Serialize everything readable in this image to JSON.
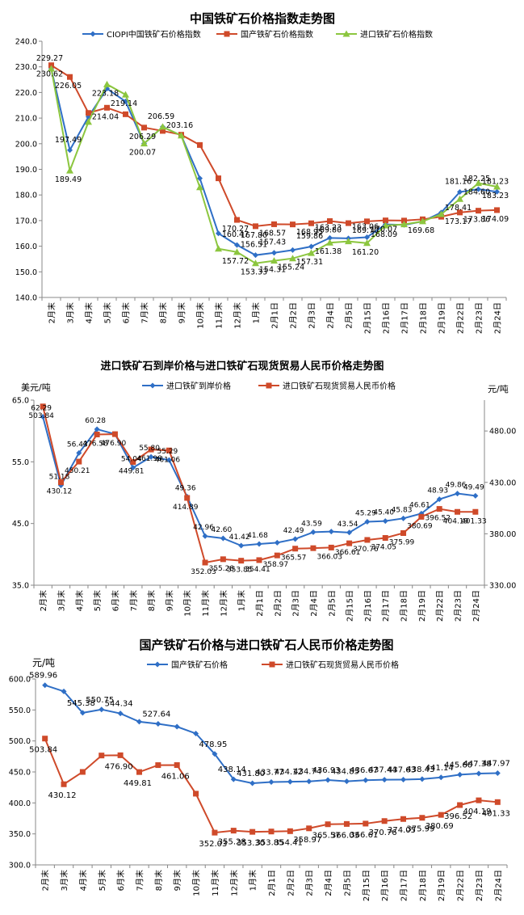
{
  "chart_data": [
    {
      "type": "line",
      "title": "中国铁矿石价格指数走势图",
      "categories": [
        "2月末",
        "3月末",
        "4月末",
        "5月末",
        "6月末",
        "7月末",
        "8月末",
        "9月末",
        "10月末",
        "11月末",
        "12月末",
        "1月末",
        "2月1日",
        "2月2日",
        "2月3日",
        "2月4日",
        "2月5日",
        "2月15日",
        "2月16日",
        "2月17日",
        "2月18日",
        "2月19日",
        "2月22日",
        "2月23日",
        "2月24日"
      ],
      "ylim": [
        140,
        240
      ],
      "y_ticks": [
        "140.0",
        "150.0",
        "160.0",
        "170.0",
        "180.0",
        "190.0",
        "200.0",
        "210.0",
        "220.0",
        "230.0",
        "240.0"
      ],
      "grid": false,
      "legend": "top",
      "series": [
        {
          "name": "CIOPI中国铁矿石价格指数",
          "color": "#2f6fc6",
          "marker": "diamond",
          "values": [
            229.27,
            197.49,
            210.5,
            221.5,
            216.5,
            200.07,
            206.59,
            203.16,
            186.5,
            165.0,
            160.47,
            156.51,
            157.43,
            158.5,
            159.86,
            163.23,
            163.06,
            163.5,
            168.5,
            168.3,
            169.68,
            173.17,
            181.16,
            182.25,
            181.23
          ]
        },
        {
          "name": "国产铁矿石价格指数",
          "color": "#cf4a2a",
          "marker": "square",
          "values": [
            230.62,
            226.05,
            212.0,
            214.04,
            211.5,
            206.29,
            205.0,
            203.5,
            199.5,
            186.5,
            170.27,
            167.8,
            168.57,
            168.5,
            168.95,
            169.8,
            169.0,
            169.7,
            170.07,
            170.0,
            170.5,
            171.5,
            173.17,
            173.86,
            174.09
          ]
        },
        {
          "name": "进口铁矿石价格指数",
          "color": "#8cc63f",
          "marker": "triangle",
          "values": [
            229.27,
            189.49,
            208.5,
            223.18,
            219.14,
            200.07,
            206.59,
            203.16,
            183.0,
            159.0,
            157.72,
            153.33,
            154.31,
            155.24,
            157.31,
            161.38,
            161.9,
            161.2,
            168.09,
            168.5,
            169.68,
            172.5,
            178.41,
            184.6,
            183.23
          ]
        }
      ],
      "labels": [
        {
          "text": "230.62",
          "series": 1,
          "i": 0
        },
        {
          "text": "229.27",
          "series": 0,
          "i": 0
        },
        {
          "text": "226.05",
          "series": 1,
          "i": 1
        },
        {
          "text": "197.49",
          "series": 0,
          "i": 1
        },
        {
          "text": "189.49",
          "series": 2,
          "i": 1
        },
        {
          "text": "214.04",
          "series": 1,
          "i": 3
        },
        {
          "text": "223.18",
          "series": 2,
          "i": 3
        },
        {
          "text": "219.14",
          "series": 2,
          "i": 4
        },
        {
          "text": "206.29",
          "series": 1,
          "i": 5
        },
        {
          "text": "200.07",
          "series": 2,
          "i": 5
        },
        {
          "text": "206.59",
          "series": 0,
          "i": 6
        },
        {
          "text": "203.16",
          "series": 0,
          "i": 7
        },
        {
          "text": "170.27",
          "series": 1,
          "i": 10
        },
        {
          "text": "160.47",
          "series": 0,
          "i": 10
        },
        {
          "text": "157.72",
          "series": 2,
          "i": 10
        },
        {
          "text": "167.80",
          "series": 1,
          "i": 11
        },
        {
          "text": "156.51",
          "series": 0,
          "i": 11
        },
        {
          "text": "153.33",
          "series": 2,
          "i": 11
        },
        {
          "text": "168.57",
          "series": 1,
          "i": 12
        },
        {
          "text": "157.43",
          "series": 0,
          "i": 12
        },
        {
          "text": "154.31",
          "series": 2,
          "i": 12
        },
        {
          "text": "155.24",
          "series": 2,
          "i": 13
        },
        {
          "text": "168.95",
          "series": 1,
          "i": 14
        },
        {
          "text": "159.86",
          "series": 0,
          "i": 14
        },
        {
          "text": "157.31",
          "series": 2,
          "i": 14
        },
        {
          "text": "169.80",
          "series": 1,
          "i": 15
        },
        {
          "text": "163.23",
          "series": 0,
          "i": 15
        },
        {
          "text": "161.38",
          "series": 2,
          "i": 15
        },
        {
          "text": "169.70",
          "series": 1,
          "i": 17
        },
        {
          "text": "163.06",
          "series": 0,
          "i": 17
        },
        {
          "text": "161.20",
          "series": 2,
          "i": 17
        },
        {
          "text": "170.07",
          "series": 1,
          "i": 18
        },
        {
          "text": "168.09",
          "series": 2,
          "i": 18
        },
        {
          "text": "169.68",
          "series": 2,
          "i": 20
        },
        {
          "text": "173.17",
          "series": 1,
          "i": 22
        },
        {
          "text": "181.16",
          "series": 0,
          "i": 22
        },
        {
          "text": "178.41",
          "series": 2,
          "i": 22
        },
        {
          "text": "173.86",
          "series": 1,
          "i": 23
        },
        {
          "text": "184.60",
          "series": 2,
          "i": 23
        },
        {
          "text": "182.25",
          "series": 0,
          "i": 23
        },
        {
          "text": "174.09",
          "series": 1,
          "i": 24
        },
        {
          "text": "183.23",
          "series": 2,
          "i": 24
        },
        {
          "text": "181.23",
          "series": 0,
          "i": 24
        }
      ]
    },
    {
      "type": "line",
      "title": "进口铁矿石到岸价格与进口铁矿石现货贸易人民币价格走势图",
      "categories": [
        "2月末",
        "3月末",
        "4月末",
        "5月末",
        "6月末",
        "7月末",
        "8月末",
        "9月末",
        "10月末",
        "11月末",
        "12月末",
        "1月末",
        "2月1日",
        "2月2日",
        "2月3日",
        "2月4日",
        "2月5日",
        "2月15日",
        "2月16日",
        "2月17日",
        "2月18日",
        "2月19日",
        "2月22日",
        "2月23日",
        "2月24日"
      ],
      "ylabel": "美元/吨",
      "ylabel_right": "元/吨",
      "ylim": [
        35,
        65
      ],
      "ylim_right": [
        330,
        510
      ],
      "y_ticks": [
        "35.0",
        "45.0",
        "55.0",
        "65.0"
      ],
      "y_ticks_right": [
        "330.00",
        "380.00",
        "430.00",
        "480.00"
      ],
      "legend": "top",
      "series": [
        {
          "name": "进口铁矿到岸价格",
          "color": "#2f6fc6",
          "marker": "diamond",
          "axis": "left",
          "values": [
            62.29,
            51.18,
            56.43,
            60.28,
            59.5,
            54.04,
            55.8,
            55.29,
            49.36,
            42.96,
            42.6,
            41.42,
            41.68,
            41.9,
            42.49,
            43.59,
            43.7,
            43.54,
            45.29,
            45.4,
            45.83,
            46.61,
            48.93,
            49.86,
            49.49
          ]
        },
        {
          "name": "进口铁矿石现货贸易人民币价格",
          "color": "#cf4a2a",
          "marker": "square",
          "axis": "right",
          "values": [
            503.84,
            430.12,
            450.21,
            476.58,
            476.9,
            449.81,
            461.98,
            461.06,
            414.89,
            352.03,
            355.28,
            353.85,
            354.41,
            358.97,
            365.57,
            366.03,
            366.61,
            370.76,
            374.05,
            375.99,
            380.69,
            396.52,
            404.19,
            401.33,
            401.33
          ]
        }
      ],
      "labels": [
        {
          "text": "503.84",
          "series": 1,
          "i": 0
        },
        {
          "text": "62.29",
          "series": 0,
          "i": 0
        },
        {
          "text": "430.12",
          "series": 1,
          "i": 1
        },
        {
          "text": "51.18",
          "series": 0,
          "i": 1
        },
        {
          "text": "56.43",
          "series": 0,
          "i": 2
        },
        {
          "text": "450.21",
          "series": 1,
          "i": 2
        },
        {
          "text": "60.28",
          "series": 0,
          "i": 3
        },
        {
          "text": "476.58",
          "series": 1,
          "i": 3
        },
        {
          "text": "476.90",
          "series": 1,
          "i": 4
        },
        {
          "text": "449.81",
          "series": 1,
          "i": 5
        },
        {
          "text": "54.04",
          "series": 0,
          "i": 5
        },
        {
          "text": "461.98",
          "series": 1,
          "i": 6
        },
        {
          "text": "55.80",
          "series": 0,
          "i": 6
        },
        {
          "text": "461.06",
          "series": 1,
          "i": 7
        },
        {
          "text": "55.29",
          "series": 0,
          "i": 7
        },
        {
          "text": "414.89",
          "series": 1,
          "i": 8
        },
        {
          "text": "49.36",
          "series": 0,
          "i": 8
        },
        {
          "text": "42.96",
          "series": 0,
          "i": 9
        },
        {
          "text": "352.03",
          "series": 1,
          "i": 9
        },
        {
          "text": "42.60",
          "series": 0,
          "i": 10
        },
        {
          "text": "355.28",
          "series": 1,
          "i": 10
        },
        {
          "text": "41.42",
          "series": 0,
          "i": 11
        },
        {
          "text": "353.85",
          "series": 1,
          "i": 11
        },
        {
          "text": "41.68",
          "series": 0,
          "i": 12
        },
        {
          "text": "354.41",
          "series": 1,
          "i": 12
        },
        {
          "text": "358.97",
          "series": 1,
          "i": 13
        },
        {
          "text": "42.49",
          "series": 0,
          "i": 14
        },
        {
          "text": "365.57",
          "series": 1,
          "i": 14
        },
        {
          "text": "43.59",
          "series": 0,
          "i": 15
        },
        {
          "text": "366.03",
          "series": 1,
          "i": 16
        },
        {
          "text": "43.54",
          "series": 0,
          "i": 17
        },
        {
          "text": "366.61",
          "series": 1,
          "i": 17
        },
        {
          "text": "45.29",
          "series": 0,
          "i": 18
        },
        {
          "text": "370.76",
          "series": 1,
          "i": 18
        },
        {
          "text": "45.40",
          "series": 0,
          "i": 19
        },
        {
          "text": "374.05",
          "series": 1,
          "i": 19
        },
        {
          "text": "45.83",
          "series": 0,
          "i": 20
        },
        {
          "text": "375.99",
          "series": 1,
          "i": 20
        },
        {
          "text": "46.61",
          "series": 0,
          "i": 21
        },
        {
          "text": "380.69",
          "series": 1,
          "i": 21
        },
        {
          "text": "48.93",
          "series": 0,
          "i": 22
        },
        {
          "text": "396.52",
          "series": 1,
          "i": 22
        },
        {
          "text": "49.86",
          "series": 0,
          "i": 23
        },
        {
          "text": "404.19",
          "series": 1,
          "i": 23
        },
        {
          "text": "49.49",
          "series": 0,
          "i": 24
        },
        {
          "text": "401.33",
          "series": 1,
          "i": 24
        }
      ]
    },
    {
      "type": "line",
      "title": "国产铁矿石价格与进口铁矿石人民币价格走势图",
      "categories": [
        "2月末",
        "3月末",
        "4月末",
        "5月末",
        "6月末",
        "7月末",
        "8月末",
        "9月末",
        "10月末",
        "11月末",
        "12月末",
        "1月末",
        "2月1日",
        "2月2日",
        "2月3日",
        "2月4日",
        "2月5日",
        "2月15日",
        "2月16日",
        "2月17日",
        "2月18日",
        "2月19日",
        "2月22日",
        "2月23日",
        "2月24日"
      ],
      "ylabel": "元/吨",
      "ylim": [
        300,
        600
      ],
      "y_ticks": [
        "300.0",
        "350.0",
        "400.0",
        "450.0",
        "500.0",
        "550.0",
        "600.0"
      ],
      "legend": "top",
      "series": [
        {
          "name": "国产铁矿石价格",
          "color": "#2f6fc6",
          "marker": "diamond",
          "values": [
            589.96,
            580.0,
            545.38,
            550.75,
            544.34,
            531.0,
            527.64,
            523.0,
            512.0,
            478.95,
            438.14,
            431.8,
            433.77,
            434.12,
            434.74,
            436.93,
            434.85,
            436.67,
            437.44,
            437.63,
            438.43,
            441.14,
            445.6,
            447.38,
            447.97
          ]
        },
        {
          "name": "进口铁矿石现货贸易人民币价格",
          "color": "#cf4a2a",
          "marker": "square",
          "values": [
            503.84,
            430.12,
            450.0,
            476.5,
            476.9,
            449.81,
            461.0,
            461.06,
            414.89,
            352.03,
            355.28,
            353.3,
            353.85,
            354.41,
            358.97,
            365.57,
            366.03,
            366.61,
            370.76,
            374.05,
            375.99,
            380.69,
            396.52,
            404.19,
            401.33
          ]
        }
      ],
      "labels": [
        {
          "text": "589.96",
          "series": 0,
          "i": 0
        },
        {
          "text": "503.84",
          "series": 1,
          "i": 0
        },
        {
          "text": "430.12",
          "series": 1,
          "i": 1
        },
        {
          "text": "545.38",
          "series": 0,
          "i": 2
        },
        {
          "text": "550.75",
          "series": 0,
          "i": 3
        },
        {
          "text": "544.34",
          "series": 0,
          "i": 4
        },
        {
          "text": "476.90",
          "series": 1,
          "i": 4
        },
        {
          "text": "449.81",
          "series": 1,
          "i": 5
        },
        {
          "text": "527.64",
          "series": 0,
          "i": 6
        },
        {
          "text": "461.06",
          "series": 1,
          "i": 7
        },
        {
          "text": "478.95",
          "series": 0,
          "i": 9
        },
        {
          "text": "352.03",
          "series": 1,
          "i": 9
        },
        {
          "text": "438.14",
          "series": 0,
          "i": 10
        },
        {
          "text": "355.28",
          "series": 1,
          "i": 10
        },
        {
          "text": "431.80",
          "series": 0,
          "i": 11
        },
        {
          "text": "353.30",
          "series": 1,
          "i": 11
        },
        {
          "text": "433.77",
          "series": 0,
          "i": 12
        },
        {
          "text": "353.85",
          "series": 1,
          "i": 12
        },
        {
          "text": "434.12",
          "series": 0,
          "i": 13
        },
        {
          "text": "354.41",
          "series": 1,
          "i": 13
        },
        {
          "text": "434.74",
          "series": 0,
          "i": 14
        },
        {
          "text": "358.97",
          "series": 1,
          "i": 14
        },
        {
          "text": "436.93",
          "series": 0,
          "i": 15
        },
        {
          "text": "365.57",
          "series": 1,
          "i": 15
        },
        {
          "text": "434.85",
          "series": 0,
          "i": 16
        },
        {
          "text": "366.03",
          "series": 1,
          "i": 16
        },
        {
          "text": "436.67",
          "series": 0,
          "i": 17
        },
        {
          "text": "366.61",
          "series": 1,
          "i": 17
        },
        {
          "text": "437.44",
          "series": 0,
          "i": 18
        },
        {
          "text": "370.76",
          "series": 1,
          "i": 18
        },
        {
          "text": "437.63",
          "series": 0,
          "i": 19
        },
        {
          "text": "374.05",
          "series": 1,
          "i": 19
        },
        {
          "text": "438.43",
          "series": 0,
          "i": 20
        },
        {
          "text": "375.99",
          "series": 1,
          "i": 20
        },
        {
          "text": "441.14",
          "series": 0,
          "i": 21
        },
        {
          "text": "380.69",
          "series": 1,
          "i": 21
        },
        {
          "text": "445.60",
          "series": 0,
          "i": 22
        },
        {
          "text": "396.52",
          "series": 1,
          "i": 22
        },
        {
          "text": "447.38",
          "series": 0,
          "i": 23
        },
        {
          "text": "404.19",
          "series": 1,
          "i": 23
        },
        {
          "text": "447.97",
          "series": 0,
          "i": 24
        },
        {
          "text": "401.33",
          "series": 1,
          "i": 24
        }
      ]
    }
  ]
}
